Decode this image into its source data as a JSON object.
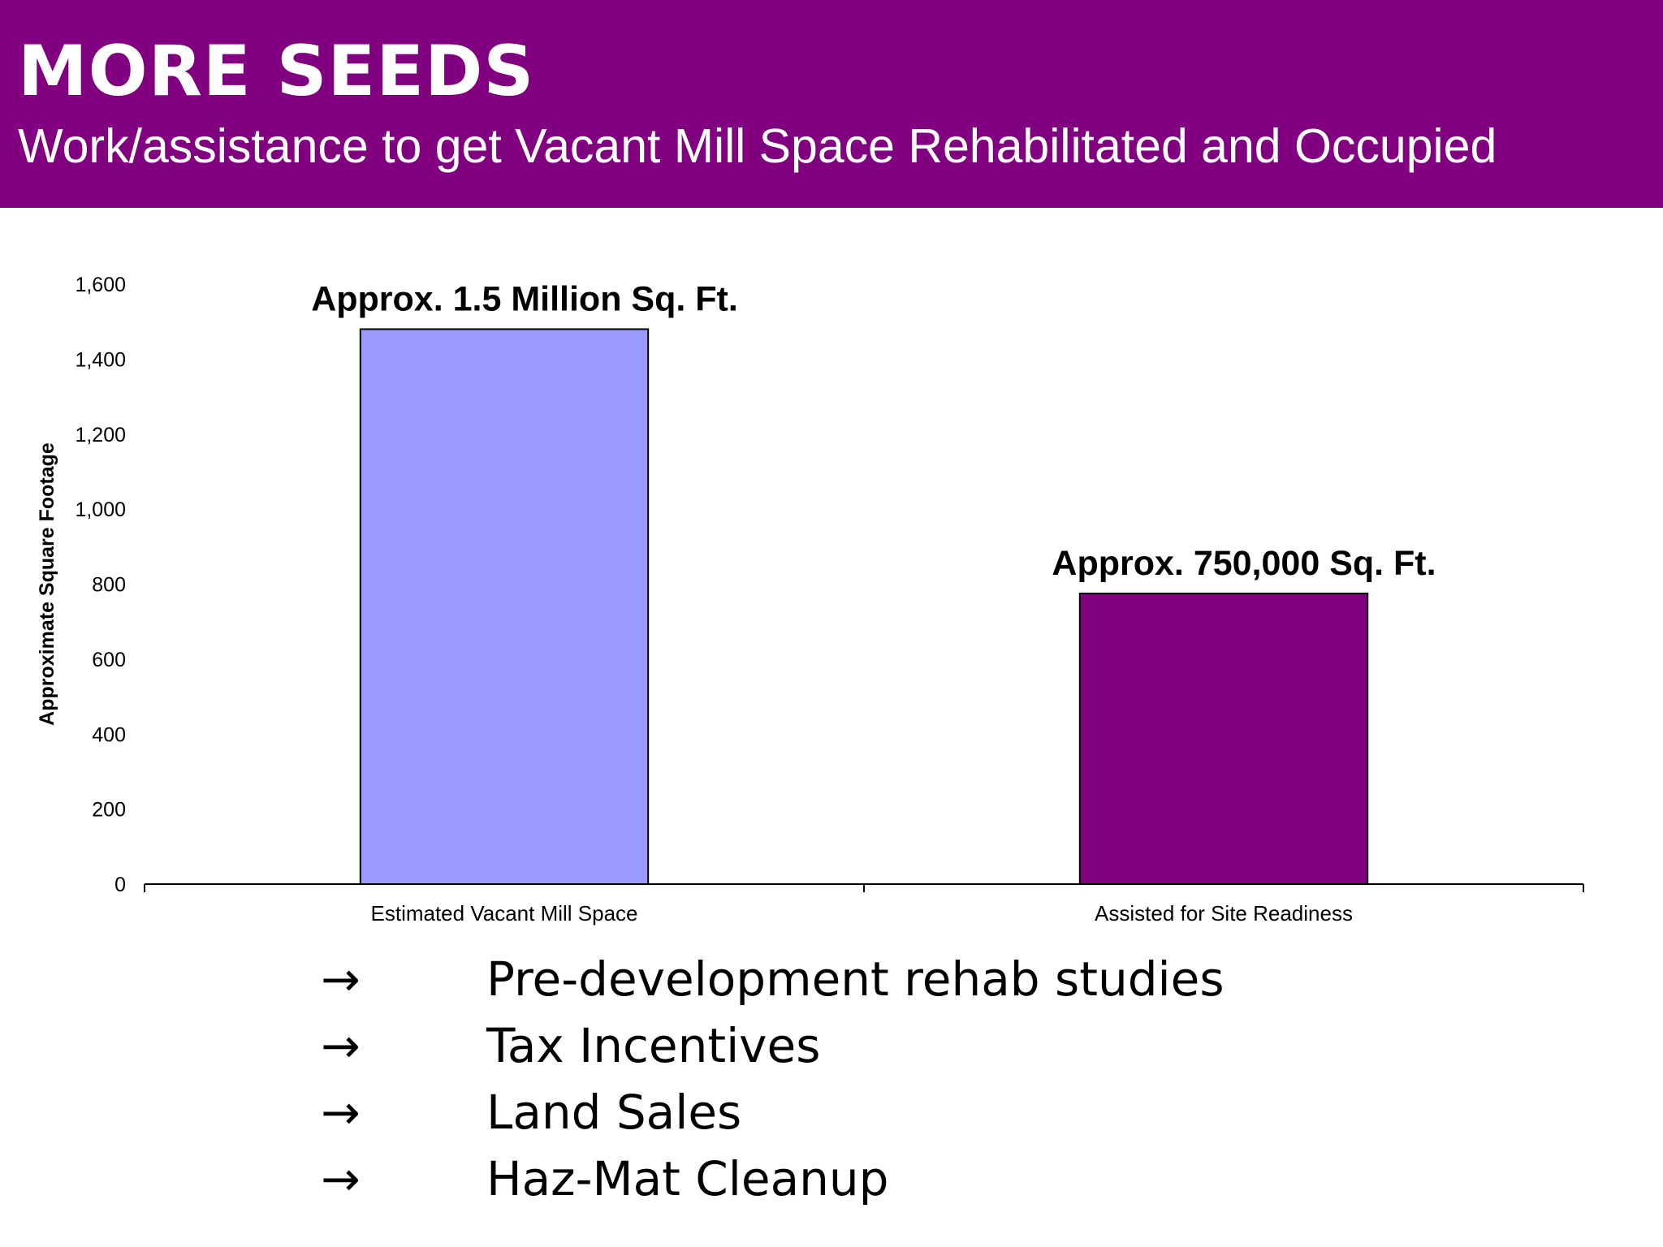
{
  "header": {
    "title": "MORE SEEDS",
    "subtitle": "Work/assistance to get Vacant Mill Space Rehabilitated and Occupied",
    "background": "#800080"
  },
  "chart_data": {
    "type": "bar",
    "categories": [
      "Estimated Vacant Mill Space",
      "Assisted for Site Readiness"
    ],
    "values": [
      1480,
      775
    ],
    "data_labels": [
      "Approx. 1.5 Million Sq. Ft.",
      "Approx. 750,000 Sq. Ft."
    ],
    "bar_colors": [
      "#9999FF",
      "#800080"
    ],
    "ylabel": "Approximate Square Footage",
    "xlabel": "",
    "ylim": [
      0,
      1600
    ],
    "yticks": [
      0,
      200,
      400,
      600,
      800,
      1000,
      1200,
      1400,
      1600
    ],
    "ytick_labels": [
      "0",
      "200",
      "400",
      "600",
      "800",
      "1,000",
      "1,200",
      "1,400",
      "1,600"
    ],
    "grid": false,
    "legend": "none"
  },
  "bullets": {
    "arrow_glyph": "→",
    "items": [
      "Pre-development rehab studies",
      "Tax Incentives",
      "Land Sales",
      "Haz-Mat Cleanup"
    ]
  }
}
